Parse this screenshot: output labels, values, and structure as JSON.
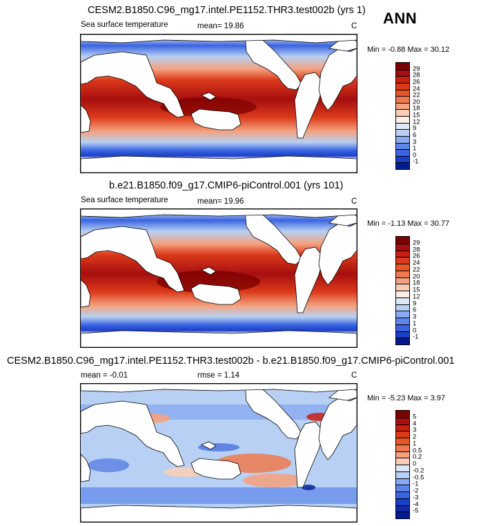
{
  "season": "ANN",
  "panels": [
    {
      "title": "CESM2.B1850.C96_mg17.intel.PE1152.THR3.test002b (yrs 1)",
      "variable": "Sea surface temperature",
      "stat": "mean=  19.86",
      "units": "C",
      "minmax": "Min = -0.88 Max = 30.12",
      "colorbar": {
        "labels": [
          "29",
          "28",
          "26",
          "24",
          "22",
          "20",
          "18",
          "15",
          "12",
          "9",
          "6",
          "3",
          "1",
          "0",
          "-1"
        ],
        "colors": [
          "#7b0000",
          "#a50f0f",
          "#c8210f",
          "#dc3a1a",
          "#e7572d",
          "#ee7a4f",
          "#f4a280",
          "#f8cdb8",
          "#fbeee7",
          "#dde9f8",
          "#b7d0f3",
          "#89aaf0",
          "#5d86ea",
          "#3a64e0",
          "#1b3fc8",
          "#001a8f"
        ]
      }
    },
    {
      "title": "b.e21.B1850.f09_g17.CMIP6-piControl.001 (yrs 101)",
      "variable": "Sea surface temperature",
      "stat": "mean=  19.96",
      "units": "C",
      "minmax": "Min = -1.13 Max = 30.77",
      "colorbar": {
        "labels": [
          "29",
          "28",
          "26",
          "24",
          "22",
          "20",
          "18",
          "15",
          "12",
          "9",
          "6",
          "3",
          "1",
          "0",
          "-1"
        ],
        "colors": [
          "#7b0000",
          "#a50f0f",
          "#c8210f",
          "#dc3a1a",
          "#e7572d",
          "#ee7a4f",
          "#f4a280",
          "#f8cdb8",
          "#fbeee7",
          "#dde9f8",
          "#b7d0f3",
          "#89aaf0",
          "#5d86ea",
          "#3a64e0",
          "#1b3fc8",
          "#001a8f"
        ]
      }
    },
    {
      "title": "CESM2.B1850.C96_mg17.intel.PE1152.THR3.test002b - b.e21.B1850.f09_g17.CMIP6-piControl.001",
      "stat_left": "mean =  -0.01",
      "stat": "rmse =   1.14",
      "units": "C",
      "minmax": "Min = -5.23 Max =  3.97",
      "colorbar": {
        "labels": [
          "5",
          "4",
          "3",
          "2",
          "1",
          "0.5",
          "0.2",
          "0",
          "-0.2",
          "-0.5",
          "-1",
          "-2",
          "-3",
          "-4",
          "-5"
        ],
        "colors": [
          "#7b0000",
          "#a50f0f",
          "#c8210f",
          "#dc3a1a",
          "#e7572d",
          "#ee7a4f",
          "#f4a280",
          "#f8cdb8",
          "#dde9f8",
          "#b7d0f3",
          "#89aaf0",
          "#5d86ea",
          "#3a64e0",
          "#1b3fc8",
          "#0d2aa8",
          "#001a8f"
        ]
      }
    }
  ]
}
